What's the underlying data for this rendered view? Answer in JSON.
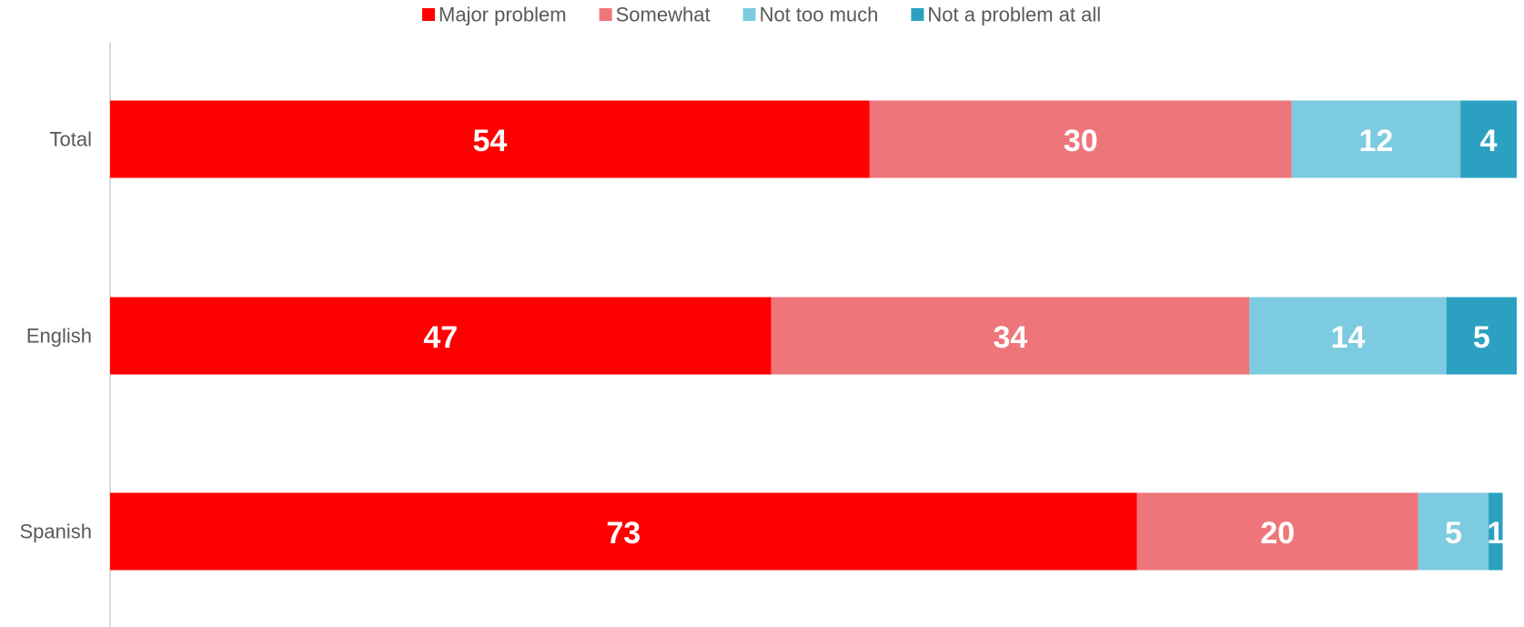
{
  "chart_data": {
    "type": "bar",
    "orientation": "horizontal",
    "stacked": true,
    "title": "",
    "xlabel": "",
    "ylabel": "",
    "xlim": [
      0,
      100
    ],
    "grid": false,
    "legend_position": "top-center",
    "categories": [
      "Total",
      "English",
      "Spanish"
    ],
    "series": [
      {
        "name": "Major problem",
        "color": "#ff0000",
        "values": [
          54,
          47,
          73
        ]
      },
      {
        "name": "Somewhat",
        "color": "#ee767b",
        "values": [
          30,
          34,
          20
        ]
      },
      {
        "name": "Not too much",
        "color": "#7ccbe0",
        "values": [
          12,
          14,
          5
        ]
      },
      {
        "name": "Not a problem at all",
        "color": "#2ba0c0",
        "values": [
          4,
          5,
          1
        ]
      }
    ]
  }
}
